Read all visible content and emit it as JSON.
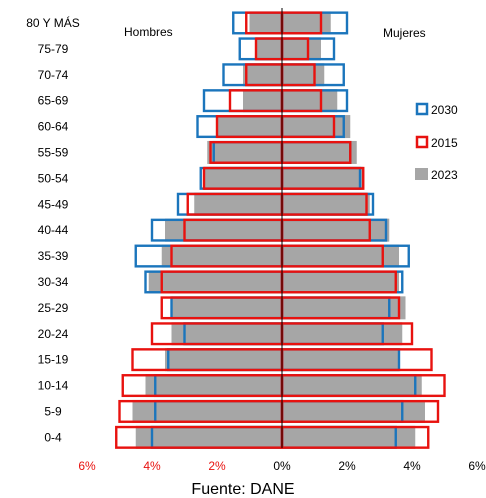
{
  "chart_data": {
    "type": "bar",
    "subtype": "population-pyramid",
    "left_label": "Hombres",
    "right_label": "Mujeres",
    "source": "Fuente: DANE",
    "categories": [
      "80 Y MÁS",
      "75-79",
      "70-74",
      "65-69",
      "60-64",
      "55-59",
      "50-54",
      "45-49",
      "40-44",
      "35-39",
      "30-34",
      "25-29",
      "20-24",
      "15-19",
      "10-14",
      "5-9",
      "0-4"
    ],
    "x_ticks": [
      "6%",
      "4%",
      "2%",
      "0%",
      "2%",
      "4%",
      "6%"
    ],
    "x_tick_colors": [
      "#e8120f",
      "#e8120f",
      "#e8120f",
      "#000000",
      "#000000",
      "#000000",
      "#000000"
    ],
    "xlim": [
      -6,
      6
    ],
    "grid": false,
    "legend_position": "right",
    "legend": [
      {
        "name": "2030",
        "style": "outline",
        "color": "#1b75bc"
      },
      {
        "name": "2015",
        "style": "outline",
        "color": "#e8120f"
      },
      {
        "name": "2023",
        "style": "fill",
        "color": "#a6a6a6"
      }
    ],
    "series": [
      {
        "name": "2023",
        "men": [
          1.0,
          0.8,
          1.2,
          1.2,
          2.0,
          2.3,
          2.4,
          2.7,
          3.6,
          3.7,
          4.1,
          3.4,
          3.4,
          3.6,
          4.2,
          4.6,
          4.5
        ],
        "women": [
          1.5,
          1.2,
          1.3,
          1.7,
          2.1,
          2.3,
          2.5,
          2.7,
          3.3,
          3.6,
          3.6,
          3.8,
          3.7,
          3.6,
          4.3,
          4.4,
          4.1
        ]
      },
      {
        "name": "2030",
        "men": [
          1.5,
          1.3,
          1.8,
          2.4,
          2.6,
          2.1,
          2.5,
          3.2,
          4.0,
          4.5,
          4.2,
          3.4,
          3.0,
          3.5,
          3.9,
          3.9,
          4.0
        ],
        "women": [
          2.0,
          1.6,
          1.9,
          2.0,
          1.9,
          2.1,
          2.4,
          2.8,
          3.2,
          3.9,
          3.7,
          3.3,
          3.1,
          3.6,
          4.1,
          3.7,
          3.5
        ]
      },
      {
        "name": "2015",
        "men": [
          1.1,
          0.8,
          1.1,
          1.6,
          2.0,
          2.2,
          2.4,
          2.9,
          3.0,
          3.4,
          3.7,
          3.7,
          4.0,
          4.6,
          4.9,
          5.0,
          5.1
        ],
        "women": [
          1.2,
          0.8,
          1.0,
          1.2,
          1.6,
          2.1,
          2.5,
          2.6,
          2.7,
          3.1,
          3.5,
          3.6,
          4.0,
          4.6,
          5.0,
          4.8,
          4.5
        ]
      }
    ]
  }
}
